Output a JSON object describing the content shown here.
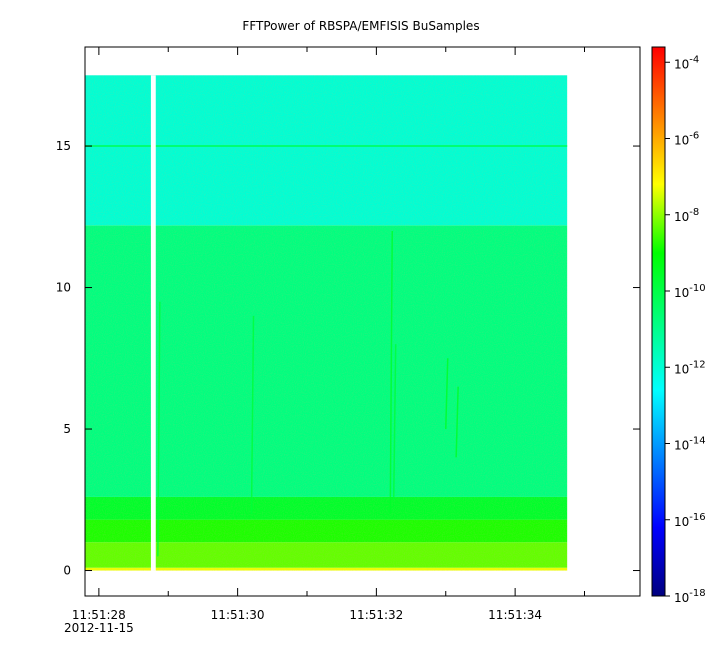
{
  "chart_data": {
    "type": "heatmap",
    "title": "FFTPower of RBSPA/EMFISIS  BuSamples",
    "xlabel": "",
    "ylabel": "",
    "x_axis": {
      "type": "time",
      "ticks": [
        {
          "label": "11:51:28",
          "sublabel": "2012-11-15",
          "t": 0
        },
        {
          "label": "11:51:30",
          "t": 2
        },
        {
          "label": "11:51:32",
          "t": 4
        },
        {
          "label": "11:51:34",
          "t": 6
        }
      ],
      "minor_ticks": [
        1,
        3,
        5,
        7
      ],
      "range": [
        -0.2,
        7.8
      ]
    },
    "y_axis": {
      "ticks": [
        0,
        5,
        10,
        15
      ],
      "range": [
        -0.9,
        18.5
      ]
    },
    "data_extent": {
      "t_start": -0.2,
      "t_end": 6.75,
      "freq_max": 17.5
    },
    "gap": {
      "t_start": 0.75,
      "t_end": 0.82
    },
    "bands": [
      {
        "freq_from": 0,
        "freq_to": 0.1,
        "log_power": -7.3
      },
      {
        "freq_from": 0.1,
        "freq_to": 1.0,
        "log_power": -8.3
      },
      {
        "freq_from": 1.0,
        "freq_to": 1.8,
        "log_power": -8.8
      },
      {
        "freq_from": 1.8,
        "freq_to": 2.6,
        "log_power": -9.6
      },
      {
        "freq_from": 2.6,
        "freq_to": 12.2,
        "log_power": -10.8
      },
      {
        "freq_from": 12.2,
        "freq_to": 17.5,
        "log_power": -12.0
      }
    ],
    "lines": [
      {
        "freq": 15.0,
        "log_power": -10.6
      }
    ],
    "features": [
      {
        "t": 0.85,
        "f_from": 0.5,
        "f_to": 9.5,
        "log_power": -9.8
      },
      {
        "t": 2.2,
        "f_from": 2.0,
        "f_to": 9.0,
        "log_power": -9.8
      },
      {
        "t": 4.2,
        "f_from": 2.0,
        "f_to": 12.0,
        "log_power": -9.6
      },
      {
        "t": 4.25,
        "f_from": 2.5,
        "f_to": 8.0,
        "log_power": -9.8
      },
      {
        "t": 5.0,
        "f_from": 5.0,
        "f_to": 7.5,
        "log_power": -9.5
      },
      {
        "t": 5.15,
        "f_from": 4.0,
        "f_to": 6.5,
        "log_power": -9.5
      }
    ],
    "colorbar": {
      "scale": "log",
      "range_exp": [
        -18,
        -3.6
      ],
      "tick_exponents": [
        -18,
        -16,
        -14,
        -12,
        -10,
        -8,
        -6,
        -4
      ],
      "base_label": "10"
    },
    "grid": false
  }
}
